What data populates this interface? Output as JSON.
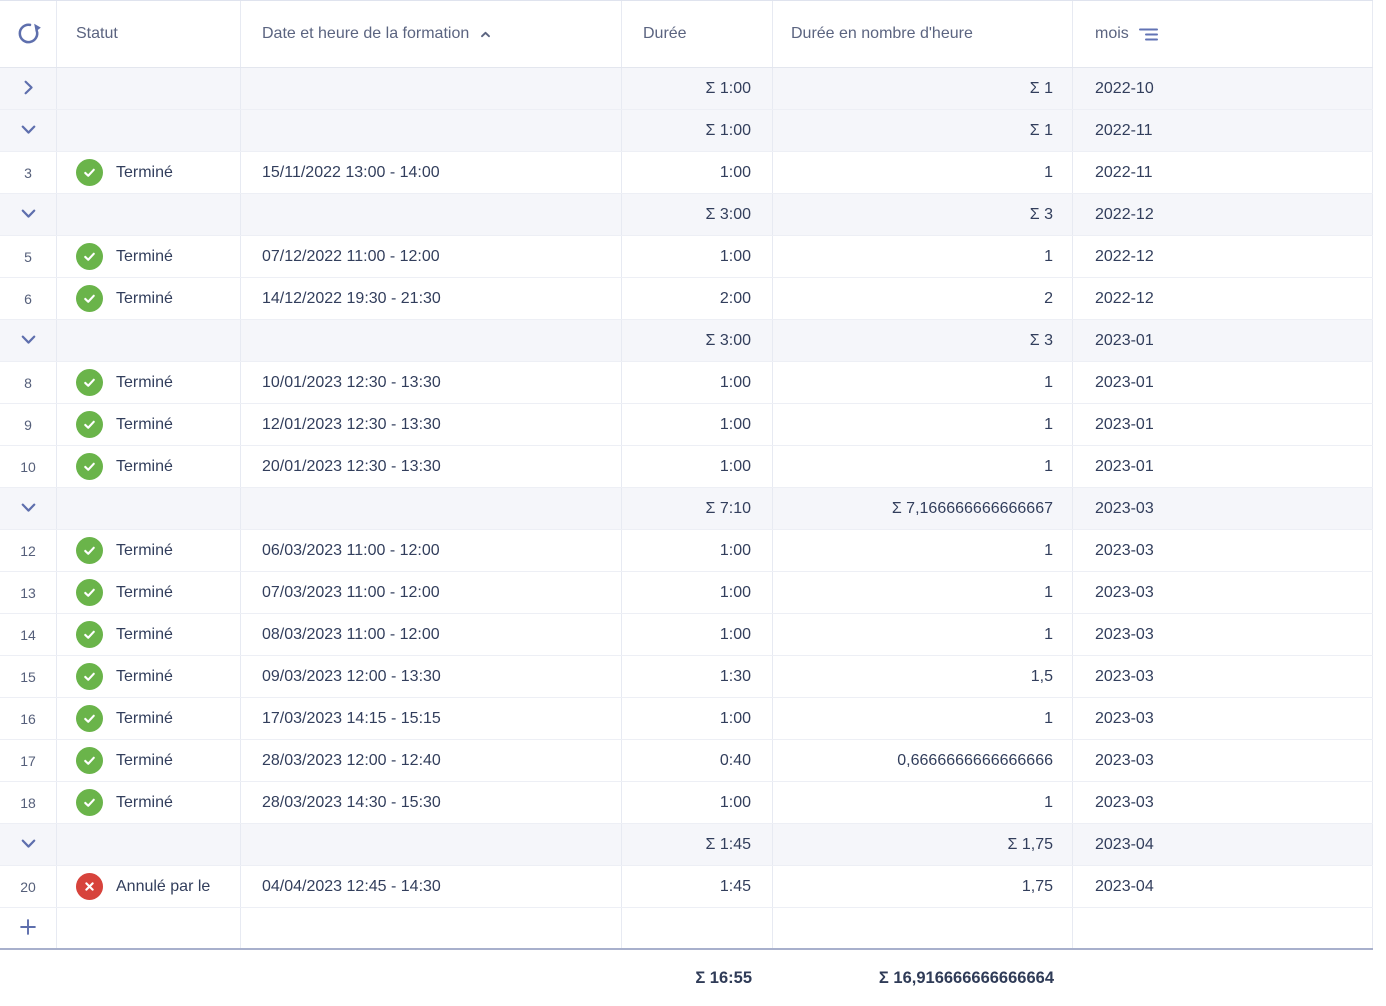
{
  "header": {
    "refresh_icon": "refresh-icon",
    "columns": {
      "statut": {
        "label": "Statut"
      },
      "date": {
        "label": "Date et heure de la formation",
        "sort_icon": "sort-ascending-icon"
      },
      "duree": {
        "label": "Durée"
      },
      "heures": {
        "label": "Durée en nombre d'heure"
      },
      "mois": {
        "label": "mois",
        "group_icon": "group-by-icon"
      }
    }
  },
  "colors": {
    "accent_blue": "#5e6fad",
    "status_done_green": "#6ab44a",
    "status_cancelled_red": "#d7433c",
    "group_row_bg": "#f5f6fa",
    "text_dark": "#323e5c",
    "header_text": "#5b6480",
    "bottom_divider": "#a8b0cc"
  },
  "table": {
    "rows": [
      {
        "type": "group",
        "expanded": false,
        "duree": "Σ 1:00",
        "heures": "Σ 1",
        "mois": "2022-10"
      },
      {
        "type": "group",
        "expanded": true,
        "duree": "Σ 1:00",
        "heures": "Σ 1",
        "mois": "2022-11"
      },
      {
        "type": "record",
        "num": "3",
        "statut_label": "Terminé",
        "statut_kind": "done",
        "date": "15/11/2022 13:00 - 14:00",
        "duree": "1:00",
        "heures": "1",
        "mois": "2022-11"
      },
      {
        "type": "group",
        "expanded": true,
        "duree": "Σ 3:00",
        "heures": "Σ 3",
        "mois": "2022-12"
      },
      {
        "type": "record",
        "num": "5",
        "statut_label": "Terminé",
        "statut_kind": "done",
        "date": "07/12/2022 11:00 - 12:00",
        "duree": "1:00",
        "heures": "1",
        "mois": "2022-12"
      },
      {
        "type": "record",
        "num": "6",
        "statut_label": "Terminé",
        "statut_kind": "done",
        "date": "14/12/2022 19:30 - 21:30",
        "duree": "2:00",
        "heures": "2",
        "mois": "2022-12"
      },
      {
        "type": "group",
        "expanded": true,
        "duree": "Σ 3:00",
        "heures": "Σ 3",
        "mois": "2023-01"
      },
      {
        "type": "record",
        "num": "8",
        "statut_label": "Terminé",
        "statut_kind": "done",
        "date": "10/01/2023 12:30 - 13:30",
        "duree": "1:00",
        "heures": "1",
        "mois": "2023-01"
      },
      {
        "type": "record",
        "num": "9",
        "statut_label": "Terminé",
        "statut_kind": "done",
        "date": "12/01/2023 12:30 - 13:30",
        "duree": "1:00",
        "heures": "1",
        "mois": "2023-01"
      },
      {
        "type": "record",
        "num": "10",
        "statut_label": "Terminé",
        "statut_kind": "done",
        "date": "20/01/2023 12:30 - 13:30",
        "duree": "1:00",
        "heures": "1",
        "mois": "2023-01"
      },
      {
        "type": "group",
        "expanded": true,
        "duree": "Σ 7:10",
        "heures": "Σ 7,166666666666667",
        "mois": "2023-03"
      },
      {
        "type": "record",
        "num": "12",
        "statut_label": "Terminé",
        "statut_kind": "done",
        "date": "06/03/2023 11:00 - 12:00",
        "duree": "1:00",
        "heures": "1",
        "mois": "2023-03"
      },
      {
        "type": "record",
        "num": "13",
        "statut_label": "Terminé",
        "statut_kind": "done",
        "date": "07/03/2023 11:00 - 12:00",
        "duree": "1:00",
        "heures": "1",
        "mois": "2023-03"
      },
      {
        "type": "record",
        "num": "14",
        "statut_label": "Terminé",
        "statut_kind": "done",
        "date": "08/03/2023 11:00 - 12:00",
        "duree": "1:00",
        "heures": "1",
        "mois": "2023-03"
      },
      {
        "type": "record",
        "num": "15",
        "statut_label": "Terminé",
        "statut_kind": "done",
        "date": "09/03/2023 12:00 - 13:30",
        "duree": "1:30",
        "heures": "1,5",
        "mois": "2023-03"
      },
      {
        "type": "record",
        "num": "16",
        "statut_label": "Terminé",
        "statut_kind": "done",
        "date": "17/03/2023 14:15 - 15:15",
        "duree": "1:00",
        "heures": "1",
        "mois": "2023-03"
      },
      {
        "type": "record",
        "num": "17",
        "statut_label": "Terminé",
        "statut_kind": "done",
        "date": "28/03/2023 12:00 - 12:40",
        "duree": "0:40",
        "heures": "0,6666666666666666",
        "mois": "2023-03"
      },
      {
        "type": "record",
        "num": "18",
        "statut_label": "Terminé",
        "statut_kind": "done",
        "date": "28/03/2023 14:30 - 15:30",
        "duree": "1:00",
        "heures": "1",
        "mois": "2023-03"
      },
      {
        "type": "group",
        "expanded": true,
        "duree": "Σ 1:45",
        "heures": "Σ 1,75",
        "mois": "2023-04"
      },
      {
        "type": "record",
        "num": "20",
        "statut_label": "Annulé par le",
        "statut_kind": "cancelled",
        "date": "04/04/2023 12:45 - 14:30",
        "duree": "1:45",
        "heures": "1,75",
        "mois": "2023-04"
      },
      {
        "type": "add"
      }
    ]
  },
  "footer": {
    "duree_total": "Σ 16:55",
    "heures_total": "Σ 16,916666666666664"
  }
}
